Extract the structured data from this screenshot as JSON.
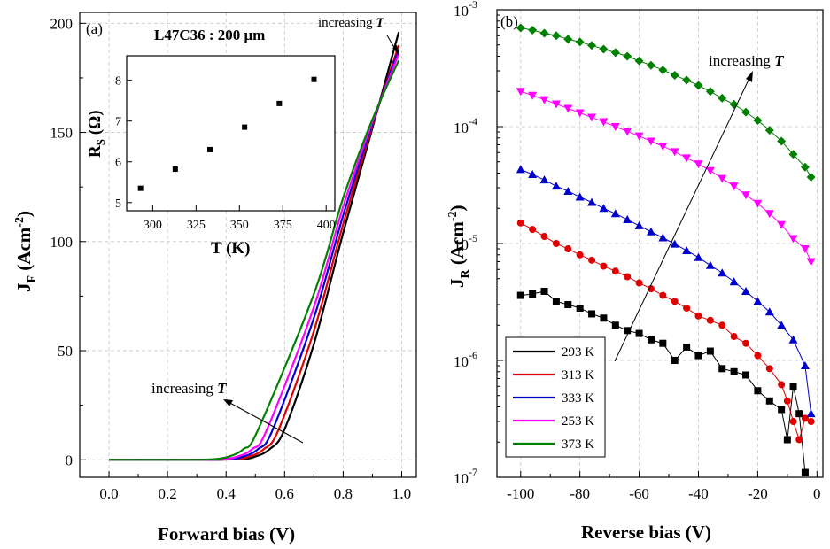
{
  "panel_a": {
    "label": "(a)",
    "sample_label": "L47C36 : 200 μm",
    "annotation_high": "increasing ",
    "annotation_low": "increasing ",
    "annotation_var": "T",
    "xlabel": "Forward bias (V)",
    "ylabel_main": "J",
    "ylabel_sub": "F",
    "ylabel_unit": " (Acm",
    "ylabel_exp": "-2",
    "ylabel_close": ")",
    "xticks": [
      "0.0",
      "0.2",
      "0.4",
      "0.6",
      "0.8",
      "1.0"
    ],
    "yticks": [
      "0",
      "50",
      "100",
      "150",
      "200"
    ],
    "inset": {
      "xlabel": "T (K)",
      "ylabel_main": "R",
      "ylabel_sub": "S",
      "ylabel_unit": " (Ω)",
      "xticks": [
        "300",
        "325",
        "350",
        "375",
        "400"
      ],
      "yticks": [
        "5",
        "6",
        "7",
        "8"
      ]
    }
  },
  "panel_b": {
    "label": "(b)",
    "annotation": "increasing ",
    "annotation_var": "T",
    "xlabel": "Reverse bias (V)",
    "ylabel_main": "J",
    "ylabel_sub": "R",
    "ylabel_unit": " (Acm",
    "ylabel_exp": "-2",
    "ylabel_close": ")",
    "xticks": [
      "-100",
      "-80",
      "-60",
      "-40",
      "-20",
      "0"
    ],
    "yticks_base": "10",
    "yticks_exp": [
      "-7",
      "-6",
      "-5",
      "-4",
      "-3"
    ]
  },
  "chart_data": [
    {
      "type": "line",
      "panel": "a",
      "xlabel": "Forward bias (V)",
      "ylabel": "JF (Acm-2)",
      "xlim": [
        -0.1,
        1.05
      ],
      "ylim": [
        -8,
        205
      ],
      "grid": true,
      "series": [
        {
          "name": "293 K",
          "color": "#000000",
          "x": [
            0.0,
            0.3,
            0.45,
            0.5,
            0.55,
            0.6,
            0.7,
            0.8,
            0.9,
            0.99
          ],
          "y": [
            0,
            0,
            0.3,
            1.5,
            5,
            14,
            53,
            104,
            152,
            196
          ]
        },
        {
          "name": "313 K",
          "color": "#e00000",
          "x": [
            0.0,
            0.3,
            0.43,
            0.48,
            0.53,
            0.58,
            0.7,
            0.8,
            0.9,
            0.99
          ],
          "y": [
            0,
            0,
            0.3,
            1.5,
            5,
            14,
            59,
            108,
            153,
            190
          ]
        },
        {
          "name": "333 K",
          "color": "#0000cc",
          "x": [
            0.0,
            0.3,
            0.41,
            0.46,
            0.51,
            0.56,
            0.7,
            0.8,
            0.9,
            0.99
          ],
          "y": [
            0,
            0,
            0.3,
            1.5,
            5,
            14,
            65,
            112,
            154,
            188
          ]
        },
        {
          "name": "253 K",
          "color": "#ff00ff",
          "x": [
            0.0,
            0.3,
            0.39,
            0.44,
            0.49,
            0.54,
            0.7,
            0.8,
            0.9,
            0.99
          ],
          "y": [
            0,
            0,
            0.3,
            1.5,
            5,
            14,
            70,
            116,
            155,
            186
          ]
        },
        {
          "name": "373 K",
          "color": "#008000",
          "x": [
            0.0,
            0.28,
            0.36,
            0.41,
            0.46,
            0.51,
            0.7,
            0.8,
            0.9,
            0.99
          ],
          "y": [
            0,
            0,
            0.3,
            1.5,
            5,
            14,
            76,
            120,
            156,
            183
          ]
        }
      ]
    },
    {
      "type": "scatter",
      "panel": "a-inset",
      "xlabel": "T (K)",
      "ylabel": "RS (Ω)",
      "xlim": [
        285,
        405
      ],
      "ylim": [
        4.8,
        8.6
      ],
      "series": [
        {
          "x": [
            293,
            313,
            333,
            353,
            373,
            393
          ],
          "y": [
            5.35,
            5.82,
            6.3,
            6.85,
            7.43,
            8.02
          ]
        }
      ]
    },
    {
      "type": "line",
      "panel": "b",
      "xlabel": "Reverse bias (V)",
      "ylabel": "JR (Acm-2)",
      "yscale": "log",
      "xlim": [
        -108,
        2
      ],
      "ylim": [
        1e-07,
        0.001
      ],
      "grid": true,
      "legend_position": "bottom-left",
      "series": [
        {
          "name": "293 K",
          "color": "#000000",
          "marker": "square",
          "x": [
            -100,
            -96,
            -92,
            -88,
            -84,
            -80,
            -76,
            -72,
            -68,
            -64,
            -60,
            -56,
            -52,
            -48,
            -44,
            -40,
            -36,
            -32,
            -28,
            -24,
            -20,
            -16,
            -12,
            -10,
            -8,
            -6,
            -4
          ],
          "y": [
            3.6e-06,
            3.7e-06,
            3.9e-06,
            3.2e-06,
            3e-06,
            2.8e-06,
            2.5e-06,
            2.3e-06,
            2e-06,
            1.8e-06,
            1.7e-06,
            1.5e-06,
            1.4e-06,
            1e-06,
            1.3e-06,
            1.1e-06,
            1.2e-06,
            8.5e-07,
            8e-07,
            7.5e-07,
            5.5e-07,
            4.5e-07,
            3.8e-07,
            2.1e-07,
            6e-07,
            3.5e-07,
            1.1e-07
          ]
        },
        {
          "name": "313 K",
          "color": "#e00000",
          "marker": "circle",
          "x": [
            -100,
            -96,
            -92,
            -88,
            -84,
            -80,
            -76,
            -72,
            -68,
            -64,
            -60,
            -56,
            -52,
            -48,
            -44,
            -40,
            -36,
            -32,
            -28,
            -24,
            -20,
            -16,
            -12,
            -10,
            -8,
            -6,
            -4,
            -2
          ],
          "y": [
            1.5e-05,
            1.32e-05,
            1.15e-05,
            1e-05,
            9e-06,
            8e-06,
            7.2e-06,
            6.4e-06,
            5.8e-06,
            5.2e-06,
            4.6e-06,
            4.1e-06,
            3.6e-06,
            3.2e-06,
            2.8e-06,
            2.4e-06,
            2.2e-06,
            2e-06,
            1.6e-06,
            1.4e-06,
            1.1e-06,
            8.5e-07,
            6.2e-07,
            4.5e-07,
            3e-07,
            2.1e-07,
            3.2e-07,
            3e-07
          ]
        },
        {
          "name": "333 K",
          "color": "#0000cc",
          "marker": "triangle-up",
          "x": [
            -100,
            -96,
            -92,
            -88,
            -84,
            -80,
            -76,
            -72,
            -68,
            -64,
            -60,
            -56,
            -52,
            -48,
            -44,
            -40,
            -36,
            -32,
            -28,
            -24,
            -20,
            -16,
            -12,
            -8,
            -4,
            -2
          ],
          "y": [
            4.3e-05,
            3.9e-05,
            3.5e-05,
            3.1e-05,
            2.8e-05,
            2.5e-05,
            2.25e-05,
            2e-05,
            1.8e-05,
            1.6e-05,
            1.42e-05,
            1.26e-05,
            1.12e-05,
            9.9e-06,
            8.7e-06,
            7.6e-06,
            6.5e-06,
            5.6e-06,
            4.7e-06,
            3.9e-06,
            3.2e-06,
            2.6e-06,
            2e-06,
            1.5e-06,
            9e-07,
            3.5e-07
          ]
        },
        {
          "name": "253 K",
          "color": "#ff00ff",
          "marker": "triangle-down",
          "x": [
            -100,
            -96,
            -92,
            -88,
            -84,
            -80,
            -76,
            -72,
            -68,
            -64,
            -60,
            -56,
            -52,
            -48,
            -44,
            -40,
            -36,
            -32,
            -28,
            -24,
            -20,
            -16,
            -12,
            -8,
            -4,
            -2
          ],
          "y": [
            0.0002,
            0.000185,
            0.00017,
            0.000156,
            0.000143,
            0.000131,
            0.00012,
            0.00011,
            0.0001,
            9.1e-05,
            8.3e-05,
            7.5e-05,
            6.8e-05,
            6.1e-05,
            5.4e-05,
            4.8e-05,
            4.2e-05,
            3.6e-05,
            3.1e-05,
            2.6e-05,
            2.2e-05,
            1.8e-05,
            1.45e-05,
            1.1e-05,
            9e-06,
            7e-06
          ]
        },
        {
          "name": "373 K",
          "color": "#008000",
          "marker": "diamond",
          "x": [
            -100,
            -96,
            -92,
            -88,
            -84,
            -80,
            -76,
            -72,
            -68,
            -64,
            -60,
            -56,
            -52,
            -48,
            -44,
            -40,
            -36,
            -32,
            -28,
            -24,
            -20,
            -16,
            -12,
            -8,
            -4,
            -2
          ],
          "y": [
            0.0007,
            0.00067,
            0.00063,
            0.0006,
            0.00056,
            0.00053,
            0.000495,
            0.00046,
            0.00043,
            0.0004,
            0.000365,
            0.000335,
            0.000305,
            0.000275,
            0.00025,
            0.000225,
            0.0002,
            0.000175,
            0.000155,
            0.000133,
            0.000113,
            9.3e-05,
            7.5e-05,
            5.8e-05,
            4.5e-05,
            3.7e-05
          ]
        }
      ]
    }
  ]
}
